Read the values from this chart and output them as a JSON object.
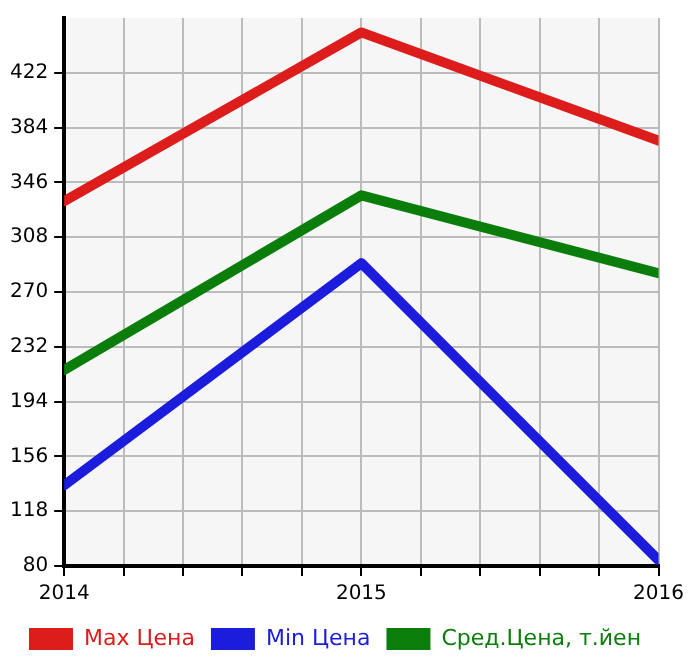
{
  "chart_data": {
    "type": "line",
    "x": [
      2014,
      2015,
      2016
    ],
    "series": [
      {
        "name": "Max Цена",
        "color": "#dd1c1c",
        "values": [
          333,
          450,
          375
        ]
      },
      {
        "name": "Min Цена",
        "color": "#1c1cdd",
        "values": [
          136,
          290,
          84
        ]
      },
      {
        "name": "Сред.Цена, т.йен",
        "color": "#0a7d0a",
        "values": [
          216,
          337,
          283
        ]
      }
    ],
    "xlim": [
      2014,
      2016
    ],
    "xticks": [
      2014,
      {
        "value": 2014.2,
        "label": null
      },
      {
        "value": 2014.4,
        "label": null
      },
      {
        "value": 2014.6,
        "label": null
      },
      {
        "value": 2014.8,
        "label": null
      },
      2015,
      {
        "value": 2015.2,
        "label": null
      },
      {
        "value": 2015.4,
        "label": null
      },
      {
        "value": 2015.6,
        "label": null
      },
      {
        "value": 2015.8,
        "label": null
      },
      2016
    ],
    "ylim": [
      80,
      460
    ],
    "yticks": [
      80,
      118,
      156,
      194,
      232,
      270,
      308,
      346,
      384,
      422
    ],
    "grid": true,
    "legend": "bottom",
    "marker": "none",
    "line_style": "solid"
  }
}
